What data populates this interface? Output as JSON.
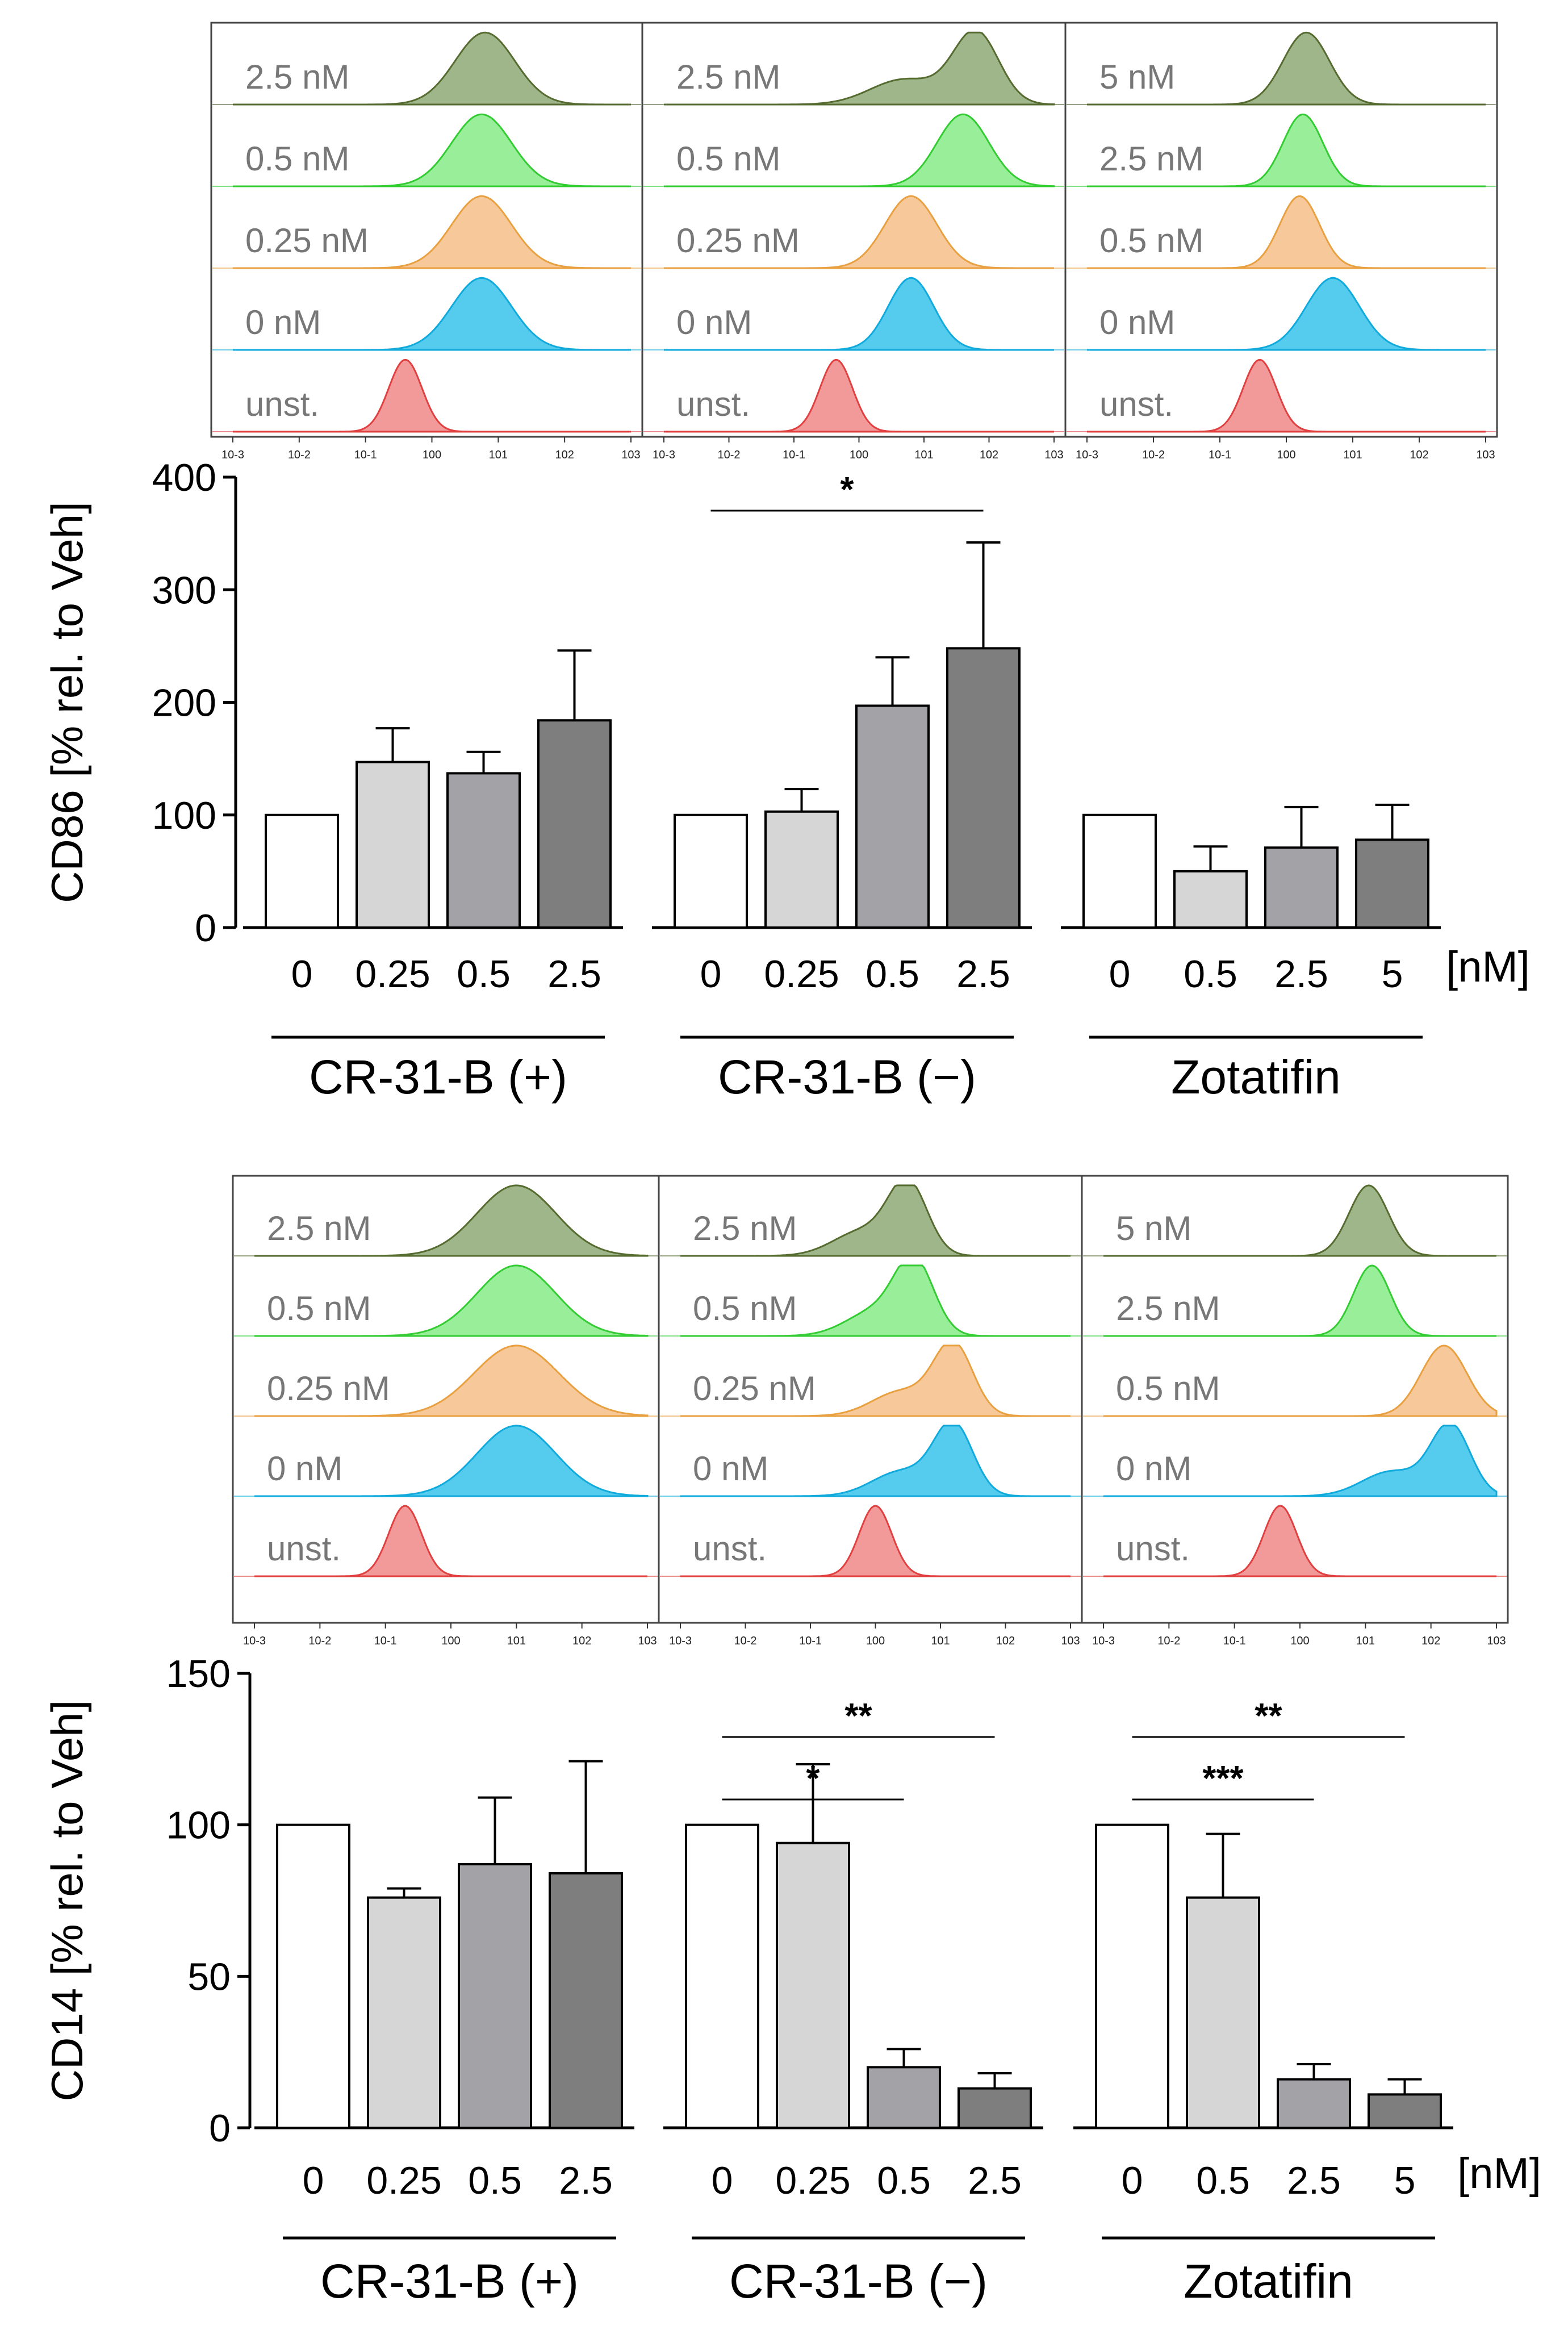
{
  "figure": {
    "unit": "[nM]",
    "group_labels": [
      "CR-31-B (+)",
      "CR-31-B (−)",
      "Zotatifin"
    ],
    "hist_ticks": [
      "10-3",
      "10-2",
      "10-1",
      "100",
      "101",
      "102",
      "103"
    ],
    "colors": {
      "green_dark": "#556b2f",
      "green_dark_fill": "#9fb58a",
      "green_light": "#33cc33",
      "green_light_fill": "#99ee99",
      "orange": "#e8a040",
      "orange_fill": "#f7c99a",
      "cyan": "#11aadd",
      "cyan_fill": "#55ccee",
      "red": "#e04040",
      "red_fill": "#f29a9a",
      "bar_fills": [
        "#ffffff",
        "#d6d6d6",
        "#a3a3a7",
        "#7e7e7e"
      ]
    }
  },
  "chart_data": [
    {
      "type": "bar",
      "title": "CD86",
      "ylabel": "CD86 [% rel. to Veh]",
      "ylim": [
        0,
        400
      ],
      "yticks": [
        0,
        100,
        200,
        300,
        400
      ],
      "groups": [
        {
          "name": "CR-31-B (+)",
          "categories": [
            "0",
            "0.25",
            "0.5",
            "2.5"
          ],
          "values": [
            100,
            147,
            137,
            184
          ],
          "errors": [
            0,
            30,
            19,
            62
          ]
        },
        {
          "name": "CR-31-B (−)",
          "categories": [
            "0",
            "0.25",
            "0.5",
            "2.5"
          ],
          "values": [
            100,
            103,
            197,
            248
          ],
          "errors": [
            0,
            20,
            43,
            94
          ]
        },
        {
          "name": "Zotatifin",
          "categories": [
            "0",
            "0.5",
            "2.5",
            "5"
          ],
          "values": [
            100,
            50,
            71,
            78
          ],
          "errors": [
            0,
            22,
            36,
            31
          ]
        }
      ],
      "significance": [
        {
          "group": 1,
          "from": 0,
          "to": 3,
          "label": "*"
        }
      ],
      "histograms": [
        {
          "group": "CR-31-B (+)",
          "rows": [
            {
              "label": "2.5 nM",
              "color": "green_dark",
              "peak_log": 0.8,
              "width": 0.45,
              "shoulder_log": null
            },
            {
              "label": "0.5 nM",
              "color": "green_light",
              "peak_log": 0.75,
              "width": 0.45,
              "shoulder_log": null
            },
            {
              "label": "0.25 nM",
              "color": "orange",
              "peak_log": 0.75,
              "width": 0.45,
              "shoulder_log": null
            },
            {
              "label": "0 nM",
              "color": "cyan",
              "peak_log": 0.75,
              "width": 0.45,
              "shoulder_log": null
            },
            {
              "label": "unst.",
              "color": "red",
              "peak_log": -0.4,
              "width": 0.25,
              "shoulder_log": null
            }
          ]
        },
        {
          "group": "CR-31-B (−)",
          "rows": [
            {
              "label": "2.5 nM",
              "color": "green_dark",
              "peak_log": 1.8,
              "width": 0.35,
              "shoulder_log": 0.7
            },
            {
              "label": "0.5 nM",
              "color": "green_light",
              "peak_log": 1.6,
              "width": 0.4,
              "shoulder_log": null
            },
            {
              "label": "0.25 nM",
              "color": "orange",
              "peak_log": 0.8,
              "width": 0.4,
              "shoulder_log": null
            },
            {
              "label": "0 nM",
              "color": "cyan",
              "peak_log": 0.8,
              "width": 0.35,
              "shoulder_log": null
            },
            {
              "label": "unst.",
              "color": "red",
              "peak_log": -0.35,
              "width": 0.25,
              "shoulder_log": null
            }
          ]
        },
        {
          "group": "Zotatifin",
          "rows": [
            {
              "label": "5 nM",
              "color": "green_dark",
              "peak_log": 0.3,
              "width": 0.35,
              "shoulder_log": null
            },
            {
              "label": "2.5 nM",
              "color": "green_light",
              "peak_log": 0.25,
              "width": 0.3,
              "shoulder_log": null
            },
            {
              "label": "0.5 nM",
              "color": "orange",
              "peak_log": 0.2,
              "width": 0.3,
              "shoulder_log": null
            },
            {
              "label": "0 nM",
              "color": "cyan",
              "peak_log": 0.7,
              "width": 0.4,
              "shoulder_log": null
            },
            {
              "label": "unst.",
              "color": "red",
              "peak_log": -0.4,
              "width": 0.25,
              "shoulder_log": null
            }
          ]
        }
      ]
    },
    {
      "type": "bar",
      "title": "CD14",
      "ylabel": "CD14 [% rel. to Veh]",
      "ylim": [
        0,
        150
      ],
      "yticks": [
        0,
        50,
        100,
        150
      ],
      "groups": [
        {
          "name": "CR-31-B (+)",
          "categories": [
            "0",
            "0.25",
            "0.5",
            "2.5"
          ],
          "values": [
            100,
            76,
            87,
            84
          ],
          "errors": [
            0,
            3,
            22,
            37
          ]
        },
        {
          "name": "CR-31-B (−)",
          "categories": [
            "0",
            "0.25",
            "0.5",
            "2.5"
          ],
          "values": [
            100,
            94,
            20,
            13
          ],
          "errors": [
            0,
            26,
            6,
            5
          ]
        },
        {
          "name": "Zotatifin",
          "categories": [
            "0",
            "0.5",
            "2.5",
            "5"
          ],
          "values": [
            100,
            76,
            16,
            11
          ],
          "errors": [
            0,
            21,
            5,
            5
          ]
        }
      ],
      "significance": [
        {
          "group": 1,
          "from": 0,
          "to": 3,
          "label": "**"
        },
        {
          "group": 1,
          "from": 0,
          "to": 2,
          "label": "*"
        },
        {
          "group": 2,
          "from": 0,
          "to": 3,
          "label": "**"
        },
        {
          "group": 2,
          "from": 0,
          "to": 2,
          "label": "***"
        }
      ],
      "histograms": [
        {
          "group": "CR-31-B (+)",
          "rows": [
            {
              "label": "2.5 nM",
              "color": "green_dark",
              "peak_log": 1.0,
              "width": 0.6,
              "shoulder_log": null
            },
            {
              "label": "0.5 nM",
              "color": "green_light",
              "peak_log": 1.0,
              "width": 0.6,
              "shoulder_log": null
            },
            {
              "label": "0.25 nM",
              "color": "orange",
              "peak_log": 1.0,
              "width": 0.65,
              "shoulder_log": null
            },
            {
              "label": "0 nM",
              "color": "cyan",
              "peak_log": 1.0,
              "width": 0.6,
              "shoulder_log": null
            },
            {
              "label": "unst.",
              "color": "red",
              "peak_log": -0.7,
              "width": 0.25,
              "shoulder_log": null
            }
          ]
        },
        {
          "group": "CR-31-B (−)",
          "rows": [
            {
              "label": "2.5 nM",
              "color": "green_dark",
              "peak_log": 0.5,
              "width": 0.3,
              "shoulder_log": -0.2
            },
            {
              "label": "0.5 nM",
              "color": "green_light",
              "peak_log": 0.6,
              "width": 0.3,
              "shoulder_log": 0.0
            },
            {
              "label": "0.25 nM",
              "color": "orange",
              "peak_log": 1.2,
              "width": 0.3,
              "shoulder_log": 0.4
            },
            {
              "label": "0 nM",
              "color": "cyan",
              "peak_log": 1.2,
              "width": 0.3,
              "shoulder_log": 0.4
            },
            {
              "label": "unst.",
              "color": "red",
              "peak_log": 0.0,
              "width": 0.25,
              "shoulder_log": null
            }
          ]
        },
        {
          "group": "Zotatifin",
          "rows": [
            {
              "label": "5 nM",
              "color": "green_dark",
              "peak_log": 1.05,
              "width": 0.3,
              "shoulder_log": null
            },
            {
              "label": "2.5 nM",
              "color": "green_light",
              "peak_log": 1.1,
              "width": 0.28,
              "shoulder_log": null
            },
            {
              "label": "0.5 nM",
              "color": "orange",
              "peak_log": 2.2,
              "width": 0.35,
              "shoulder_log": null
            },
            {
              "label": "0 nM",
              "color": "cyan",
              "peak_log": 2.3,
              "width": 0.3,
              "shoulder_log": 1.4
            },
            {
              "label": "unst.",
              "color": "red",
              "peak_log": -0.3,
              "width": 0.25,
              "shoulder_log": null
            }
          ]
        }
      ]
    }
  ]
}
